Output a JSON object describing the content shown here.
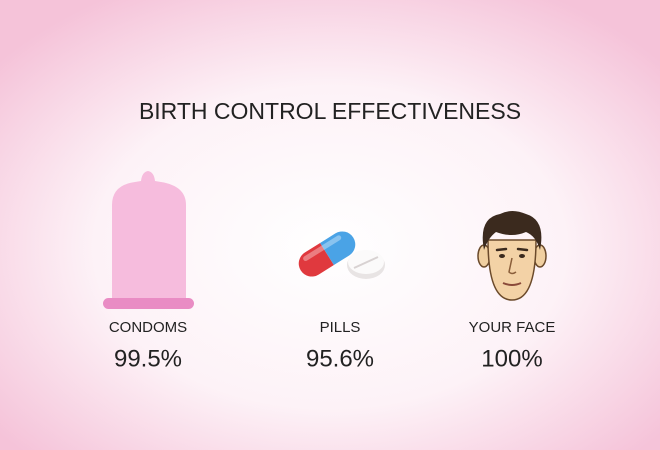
{
  "title": "BIRTH CONTROL EFFECTIVENESS",
  "items": [
    {
      "label": "CONDOMS",
      "value": "99.5%"
    },
    {
      "label": "PILLS",
      "value": "95.6%"
    },
    {
      "label": "YOUR FACE",
      "value": "100%"
    }
  ]
}
